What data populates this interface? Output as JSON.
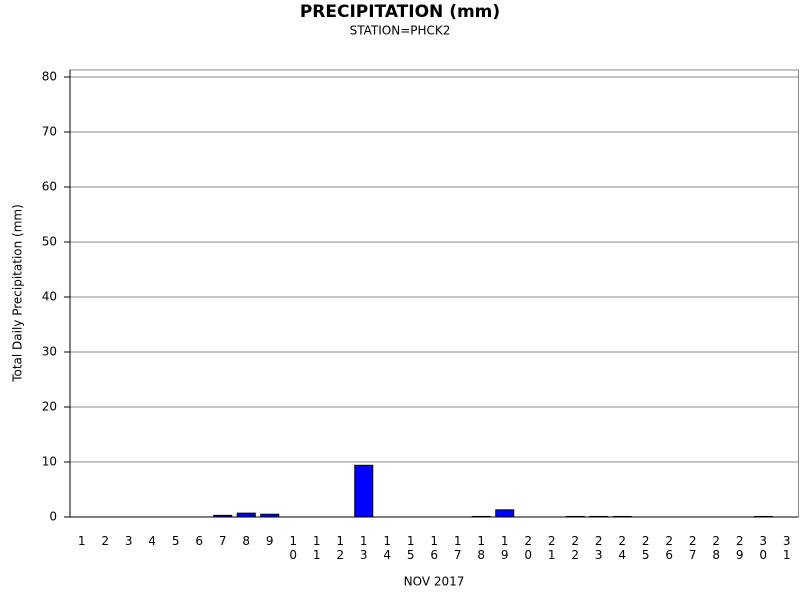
{
  "chart_data": {
    "type": "bar",
    "title": "PRECIPITATION (mm)",
    "subtitle": "STATION=PHCK2",
    "y_label": "Total Daily Precipitation (mm)",
    "x_label": "NOV 2017",
    "categories": [
      "1",
      "2",
      "3",
      "4",
      "5",
      "6",
      "7",
      "8",
      "9",
      "10",
      "11",
      "12",
      "13",
      "14",
      "15",
      "16",
      "17",
      "18",
      "19",
      "20",
      "21",
      "22",
      "23",
      "24",
      "25",
      "26",
      "27",
      "28",
      "29",
      "30",
      "31"
    ],
    "values": [
      0,
      0,
      0,
      0,
      0,
      0,
      0.3,
      0.7,
      0.5,
      0,
      0,
      0,
      9.4,
      0,
      0,
      0,
      0,
      0.1,
      1.3,
      0,
      0,
      0.1,
      0.1,
      0.1,
      0,
      0,
      0,
      0,
      0,
      0.1,
      0
    ],
    "color": "#0000ff",
    "ylim": [
      0,
      80
    ],
    "yticks": [
      0,
      10,
      20,
      30,
      40,
      50,
      60,
      70,
      80
    ],
    "grid": true
  }
}
